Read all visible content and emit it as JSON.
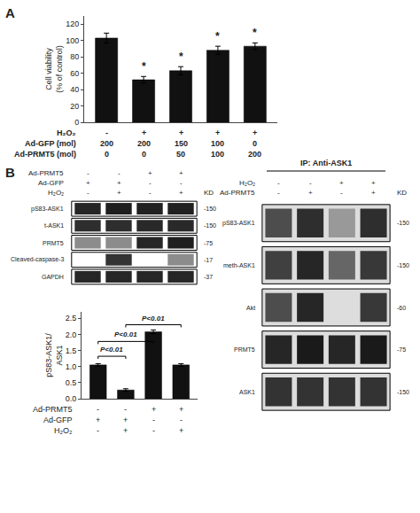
{
  "chart_data": [
    {
      "type": "bar",
      "title": "A",
      "categories": [
        null,
        null,
        null,
        null,
        null
      ],
      "values": [
        103,
        52,
        63,
        88,
        93
      ],
      "error": [
        6,
        4,
        5,
        5,
        4
      ],
      "color": "#111111",
      "ylabel": "Cell viability\n(% of control)",
      "ylim": [
        0,
        130
      ],
      "yticks": [
        0,
        20,
        40,
        60,
        80,
        100,
        120
      ],
      "grid": false,
      "tick_labels": "y",
      "conditions": [
        {
          "name": "H₂O₂",
          "values": [
            "-",
            "+",
            "+",
            "+",
            "+"
          ]
        },
        {
          "name": "Ad-GFP (mol)",
          "values": [
            "200",
            "200",
            "150",
            "100",
            "0"
          ]
        },
        {
          "name": "Ad-PRMT5 (mol)",
          "values": [
            "0",
            "0",
            "50",
            "100",
            "200"
          ]
        }
      ],
      "annotations": [
        {
          "category": 1,
          "text": "*"
        },
        {
          "category": 2,
          "text": "*"
        },
        {
          "category": 3,
          "text": "*"
        },
        {
          "category": 4,
          "text": "*"
        }
      ]
    },
    {
      "type": "blot",
      "title": "B",
      "header": [
        {
          "name": "Ad-PRMT5",
          "values": [
            "-",
            "-",
            "+",
            "+"
          ]
        },
        {
          "name": "Ad-GFP",
          "values": [
            "+",
            "+",
            "-",
            "-"
          ]
        },
        {
          "name": "H₂O₂",
          "values": [
            "-",
            "+",
            "-",
            "+"
          ]
        }
      ],
      "unit_label": "KD",
      "labels": [
        "pS83-ASK1",
        "t-ASK1",
        "PRMT5",
        "Cleaved-caspase-3",
        "GAPDH"
      ],
      "kd_labels": [
        "-150",
        "-150",
        "-75",
        "-17",
        "-37"
      ],
      "bands": [
        [
          0.15,
          0.12,
          0.13,
          0.13
        ],
        [
          0.18,
          0.18,
          0.16,
          0.16
        ],
        [
          0.55,
          0.55,
          0.15,
          0.12
        ],
        [
          null,
          0.2,
          null,
          0.55
        ],
        [
          0.15,
          0.15,
          0.15,
          0.15
        ]
      ]
    },
    {
      "type": "bar",
      "categories": [
        null,
        null,
        null,
        null
      ],
      "values": [
        1.05,
        0.27,
        2.08,
        1.05
      ],
      "error": [
        0.04,
        0.04,
        0.06,
        0.04
      ],
      "color": "#111111",
      "ylabel": "pS83-ASK1/\nASK1",
      "ylim": [
        0,
        2.7
      ],
      "yticks": [
        {
          "value": 0,
          "label": "0.0"
        },
        0.5,
        {
          "value": 1,
          "label": "1.0"
        },
        1.5,
        {
          "value": 2,
          "label": "2.0"
        },
        2.5
      ],
      "grid": false,
      "tick_labels": "y",
      "conditions": [
        {
          "name": "Ad-PRMT5",
          "values": [
            "-",
            "-",
            "+",
            "+"
          ]
        },
        {
          "name": "Ad-GFP",
          "values": [
            "+",
            "+",
            "-",
            "-"
          ]
        },
        {
          "name": "H₂O₂",
          "values": [
            "-",
            "+",
            "-",
            "+"
          ]
        }
      ],
      "brackets": [
        {
          "from": 0,
          "to": 1,
          "y": 1.32,
          "text": "P<0.01"
        },
        {
          "from": 0,
          "to": 2,
          "y": 1.78,
          "text": "P<0.01"
        },
        {
          "from": 1,
          "to": 3,
          "y": 2.3,
          "text": "P<0.01"
        }
      ]
    },
    {
      "type": "blot",
      "title": "IP: Anti-ASK1",
      "header": [
        {
          "name": "H₂O₂",
          "values": [
            "-",
            "-",
            "+",
            "+"
          ]
        },
        {
          "name": "Ad-PRMT5",
          "values": [
            "-",
            "+",
            "-",
            "+"
          ]
        }
      ],
      "unit_label": "KD",
      "labels": [
        "pS83-ASK1",
        "meth-ASK1",
        "Akt",
        "PRMT5",
        "ASK1"
      ],
      "kd_labels": [
        "-150",
        "-150",
        "-60",
        "-75",
        "-150"
      ],
      "bands": [
        [
          0.3,
          0.18,
          0.6,
          0.18
        ],
        [
          0.25,
          0.15,
          0.4,
          0.22
        ],
        [
          0.3,
          0.15,
          null,
          0.22
        ],
        [
          0.15,
          0.1,
          0.15,
          0.1
        ],
        [
          0.2,
          0.2,
          0.2,
          0.2
        ]
      ]
    }
  ]
}
